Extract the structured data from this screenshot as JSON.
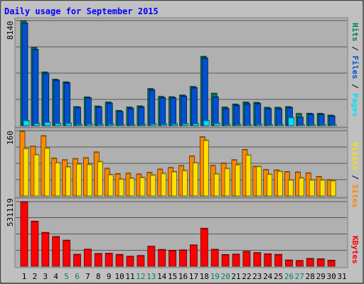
{
  "chart_data": {
    "type": "bar",
    "title": "Daily usage for September 2015",
    "days": [
      "1",
      "2",
      "3",
      "4",
      "5",
      "6",
      "7",
      "8",
      "9",
      "10",
      "11",
      "12",
      "13",
      "14",
      "15",
      "16",
      "17",
      "18",
      "19",
      "20",
      "21",
      "22",
      "23",
      "24",
      "25",
      "26",
      "27",
      "28",
      "29",
      "30",
      "31"
    ],
    "weekend_days": [
      "5",
      "6",
      "12",
      "13",
      "19",
      "20",
      "26",
      "27"
    ],
    "panels": [
      {
        "id": "hits_files_pages",
        "ymax_label": "8140",
        "ymax": 8140,
        "right_label": [
          "Pages",
          "/",
          "Files",
          "/",
          "Hits"
        ],
        "right_label_colors": [
          "#00e0ff",
          "#000000",
          "#0050d0",
          "#000000",
          "#00805c"
        ],
        "series": [
          {
            "name": "Hits",
            "color": "#00805c",
            "values": [
              8140,
              6060,
              4170,
              3600,
              3400,
              1480,
              2230,
              1530,
              1840,
              1180,
              1450,
              1540,
              2880,
              2270,
              2250,
              2380,
              3040,
              5380,
              2520,
              1450,
              1680,
              1840,
              1810,
              1430,
              1430,
              1480,
              950,
              970,
              960,
              820,
              null
            ]
          },
          {
            "name": "Files",
            "color": "#0050d0",
            "values": [
              7960,
              5920,
              4080,
              3530,
              3330,
              1430,
              2170,
              1460,
              1760,
              1110,
              1360,
              1460,
              2780,
              2180,
              2180,
              2300,
              2960,
              5250,
              2240,
              1340,
              1590,
              1710,
              1730,
              1330,
              1330,
              1420,
              660,
              910,
              900,
              760,
              null
            ]
          },
          {
            "name": "Pages",
            "color": "#00e0ff",
            "values": [
              420,
              190,
              290,
              200,
              210,
              120,
              150,
              120,
              140,
              80,
              90,
              110,
              160,
              140,
              150,
              170,
              180,
              420,
              200,
              110,
              110,
              100,
              120,
              80,
              100,
              650,
              80,
              90,
              90,
              80,
              null
            ]
          }
        ]
      },
      {
        "id": "visits_sites",
        "ymax_label": "160",
        "ymax": 160,
        "right_label": [
          "Visits",
          "/",
          "Sites"
        ],
        "right_label_colors": [
          "#ffe000",
          "#000000",
          "#ff8800"
        ],
        "series": [
          {
            "name": "Sites",
            "color": "#ff8800",
            "values": [
              159,
              122,
              148,
              93,
              89,
              92,
              94,
              108,
              68,
              55,
              56,
              54,
              58,
              66,
              70,
              75,
              98,
              145,
              75,
              81,
              89,
              114,
              73,
              65,
              64,
              60,
              59,
              57,
              48,
              40,
              null
            ]
          },
          {
            "name": "Visits",
            "color": "#ffe000",
            "values": [
              117,
              102,
              118,
              82,
              72,
              79,
              78,
              85,
              53,
              42,
              44,
              46,
              52,
              56,
              60,
              63,
              82,
              137,
              55,
              68,
              77,
              101,
              73,
              54,
              61,
              40,
              45,
              40,
              40,
              38,
              null
            ]
          }
        ]
      },
      {
        "id": "kbytes",
        "ymax_label": "531119",
        "ymax": 531119,
        "right_label": [
          "KBytes"
        ],
        "right_label_colors": [
          "#ff0000"
        ],
        "series": [
          {
            "name": "KBytes",
            "color": "#ff0000",
            "values": [
              531119,
              371000,
              279000,
              245000,
              215000,
              99000,
              141000,
              105000,
              107000,
              98000,
              83000,
              89000,
              165000,
              139000,
              130000,
              135000,
              176000,
              313000,
              140000,
              97000,
              100000,
              123000,
              113000,
              103000,
              98000,
              52000,
              48000,
              65000,
              62000,
              50000,
              null
            ]
          }
        ]
      }
    ]
  }
}
